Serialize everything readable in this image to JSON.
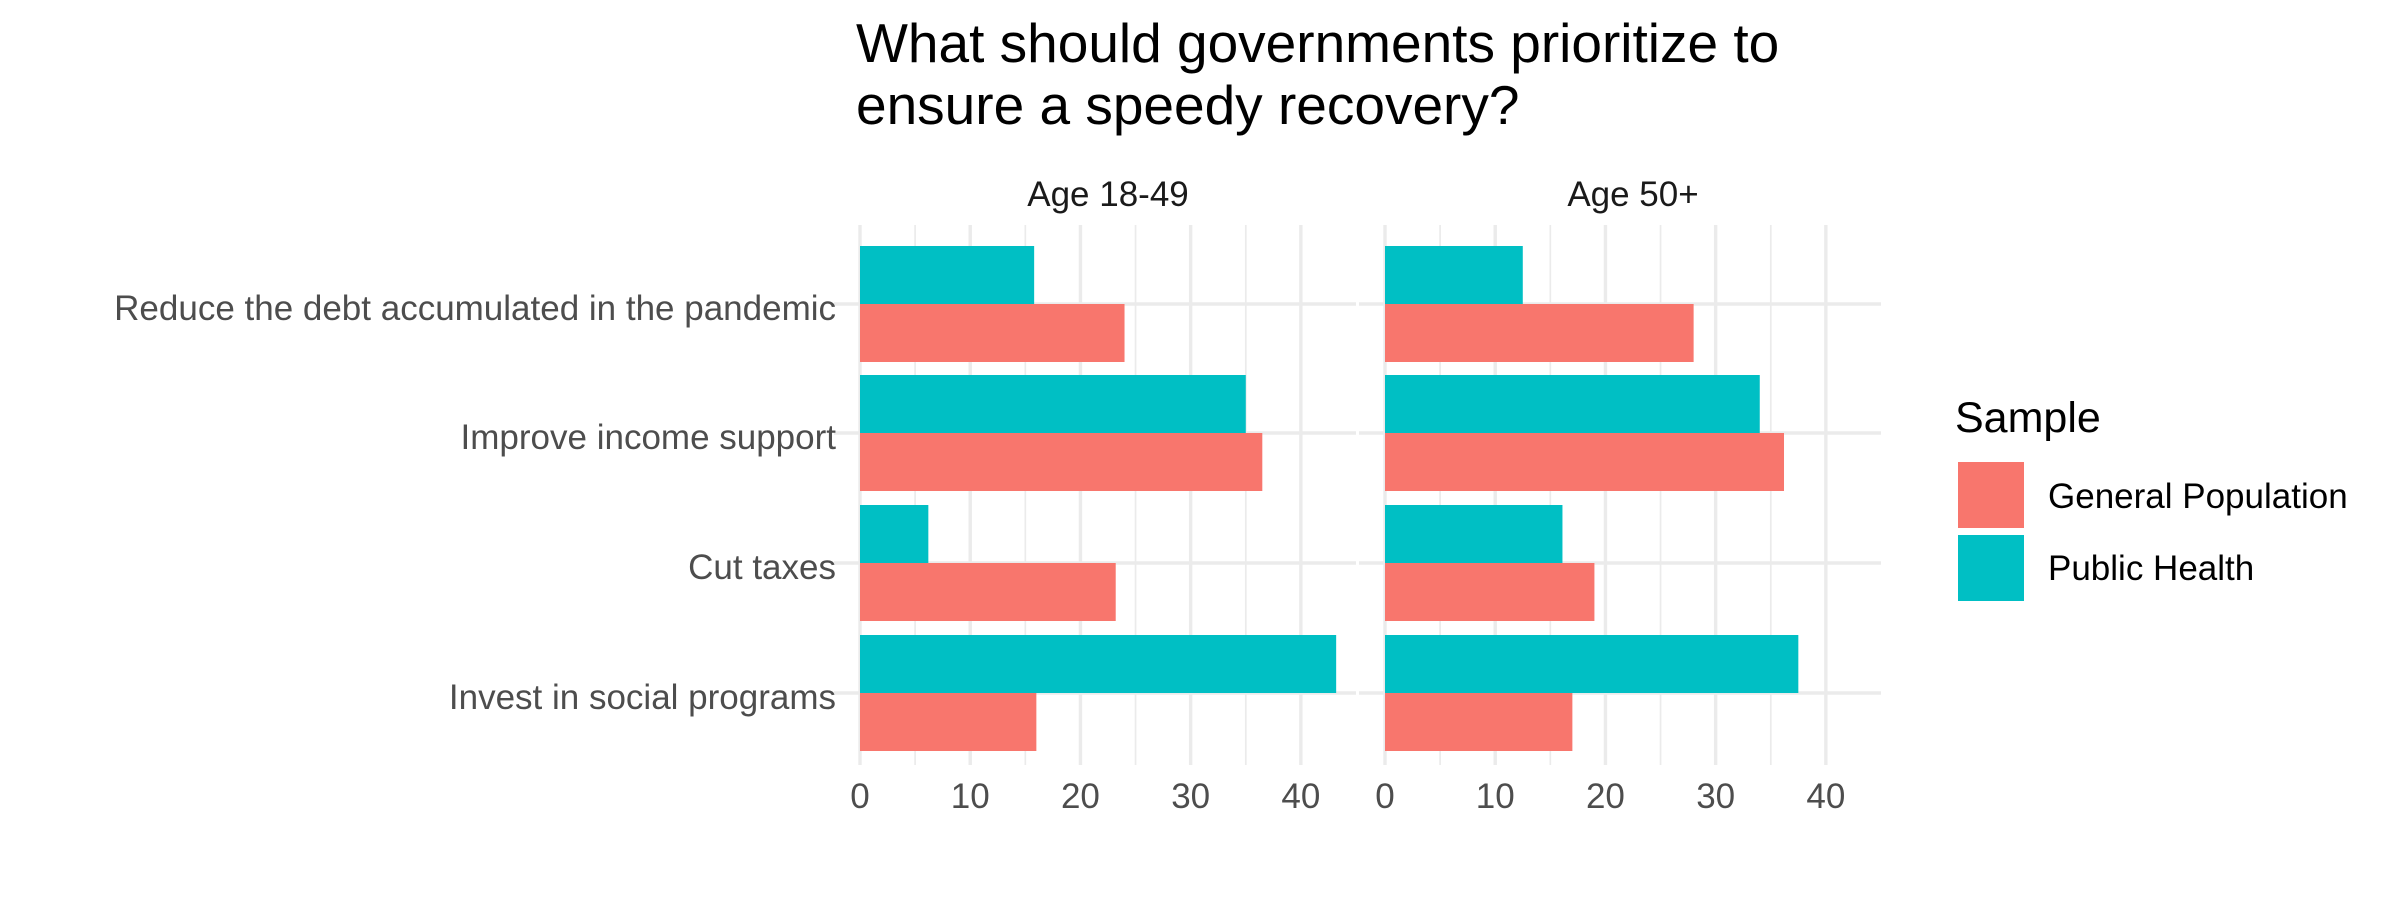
{
  "chart_data": {
    "type": "bar",
    "orientation": "horizontal",
    "title": "What should governments prioritize to ensure a speedy recovery?",
    "title_lines": [
      "What should governments prioritize to",
      "ensure a speedy recovery?"
    ],
    "categories": [
      "Reduce the debt accumulated in the pandemic",
      "Improve income support",
      "Cut taxes",
      "Invest in social programs"
    ],
    "x_ticks": [
      "0",
      "10",
      "20",
      "30",
      "40"
    ],
    "xlim": [
      0,
      45
    ],
    "xlabel": "",
    "ylabel": "",
    "grid": true,
    "legend": {
      "title": "Sample",
      "placement": "right",
      "entries": [
        {
          "name": "General Population",
          "color": "#F8766D"
        },
        {
          "name": "Public Health",
          "color": "#00BFC4"
        }
      ]
    },
    "facets": [
      {
        "label": "Age 18-49",
        "series": [
          {
            "name": "General Population",
            "color": "#F8766D",
            "values": [
              24,
              36.5,
              23.2,
              16
            ]
          },
          {
            "name": "Public Health",
            "color": "#00BFC4",
            "values": [
              15.8,
              35,
              6.2,
              43.2
            ]
          }
        ]
      },
      {
        "label": "Age 50+",
        "series": [
          {
            "name": "General Population",
            "color": "#F8766D",
            "values": [
              28,
              36.2,
              19,
              17
            ]
          },
          {
            "name": "Public Health",
            "color": "#00BFC4",
            "values": [
              12.5,
              34,
              16.1,
              37.5
            ]
          }
        ]
      }
    ]
  }
}
